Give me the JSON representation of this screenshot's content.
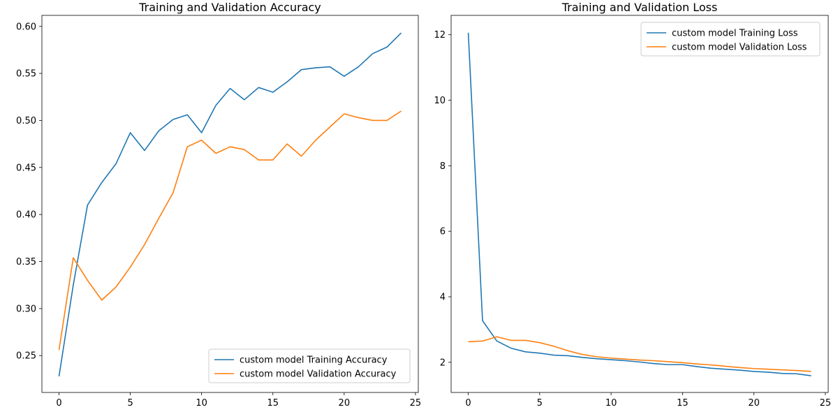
{
  "chart_data": [
    {
      "type": "line",
      "title": "Training and Validation Accuracy",
      "xlabel": "",
      "ylabel": "",
      "xlim": [
        -1.2,
        25.2
      ],
      "ylim": [
        0.2108,
        0.6117
      ],
      "xticks": [
        0,
        5,
        10,
        15,
        20,
        25
      ],
      "yticks": [
        0.25,
        0.3,
        0.35,
        0.4,
        0.45,
        0.5,
        0.55,
        0.6
      ],
      "ytick_labels": [
        "0.25",
        "0.30",
        "0.35",
        "0.40",
        "0.45",
        "0.50",
        "0.55",
        "0.60"
      ],
      "grid": false,
      "legend_position": "bottom-right",
      "x": [
        0,
        1,
        2,
        3,
        4,
        5,
        6,
        7,
        8,
        9,
        10,
        11,
        12,
        13,
        14,
        15,
        16,
        17,
        18,
        19,
        20,
        21,
        22,
        23,
        24
      ],
      "series": [
        {
          "name": "custom model Training Accuracy",
          "color": "#1f77b4",
          "values": [
            0.228,
            0.325,
            0.41,
            0.434,
            0.454,
            0.487,
            0.468,
            0.489,
            0.501,
            0.506,
            0.487,
            0.516,
            0.534,
            0.522,
            0.535,
            0.53,
            0.541,
            0.554,
            0.556,
            0.557,
            0.547,
            0.557,
            0.571,
            0.578,
            0.593
          ]
        },
        {
          "name": "custom model Validation Accuracy",
          "color": "#ff7f0e",
          "values": [
            0.256,
            0.354,
            0.33,
            0.309,
            0.323,
            0.344,
            0.368,
            0.396,
            0.423,
            0.472,
            0.479,
            0.465,
            0.472,
            0.469,
            0.458,
            0.458,
            0.475,
            0.462,
            0.479,
            0.493,
            0.507,
            0.503,
            0.5,
            0.5,
            0.51
          ]
        }
      ]
    },
    {
      "type": "line",
      "title": "Training and Validation Loss",
      "xlabel": "",
      "ylabel": "",
      "xlim": [
        -1.2,
        25.2
      ],
      "ylim": [
        1.08,
        12.59
      ],
      "xticks": [
        0,
        5,
        10,
        15,
        20,
        25
      ],
      "yticks": [
        2,
        4,
        6,
        8,
        10,
        12
      ],
      "ytick_labels": [
        "2",
        "4",
        "6",
        "8",
        "10",
        "12"
      ],
      "grid": false,
      "legend_position": "top-right",
      "x": [
        0,
        1,
        2,
        3,
        4,
        5,
        6,
        7,
        8,
        9,
        10,
        11,
        12,
        13,
        14,
        15,
        16,
        17,
        18,
        19,
        20,
        21,
        22,
        23,
        24
      ],
      "series": [
        {
          "name": "custom model Training Loss",
          "color": "#1f77b4",
          "values": [
            12.06,
            3.27,
            2.65,
            2.43,
            2.32,
            2.28,
            2.22,
            2.2,
            2.15,
            2.11,
            2.08,
            2.05,
            2.01,
            1.96,
            1.93,
            1.93,
            1.87,
            1.82,
            1.79,
            1.76,
            1.72,
            1.7,
            1.66,
            1.65,
            1.59
          ]
        },
        {
          "name": "custom model Validation Loss",
          "color": "#ff7f0e",
          "values": [
            2.63,
            2.65,
            2.78,
            2.67,
            2.67,
            2.6,
            2.49,
            2.35,
            2.24,
            2.17,
            2.13,
            2.1,
            2.07,
            2.05,
            2.02,
            1.99,
            1.95,
            1.92,
            1.88,
            1.84,
            1.81,
            1.79,
            1.77,
            1.75,
            1.72
          ]
        }
      ]
    }
  ]
}
